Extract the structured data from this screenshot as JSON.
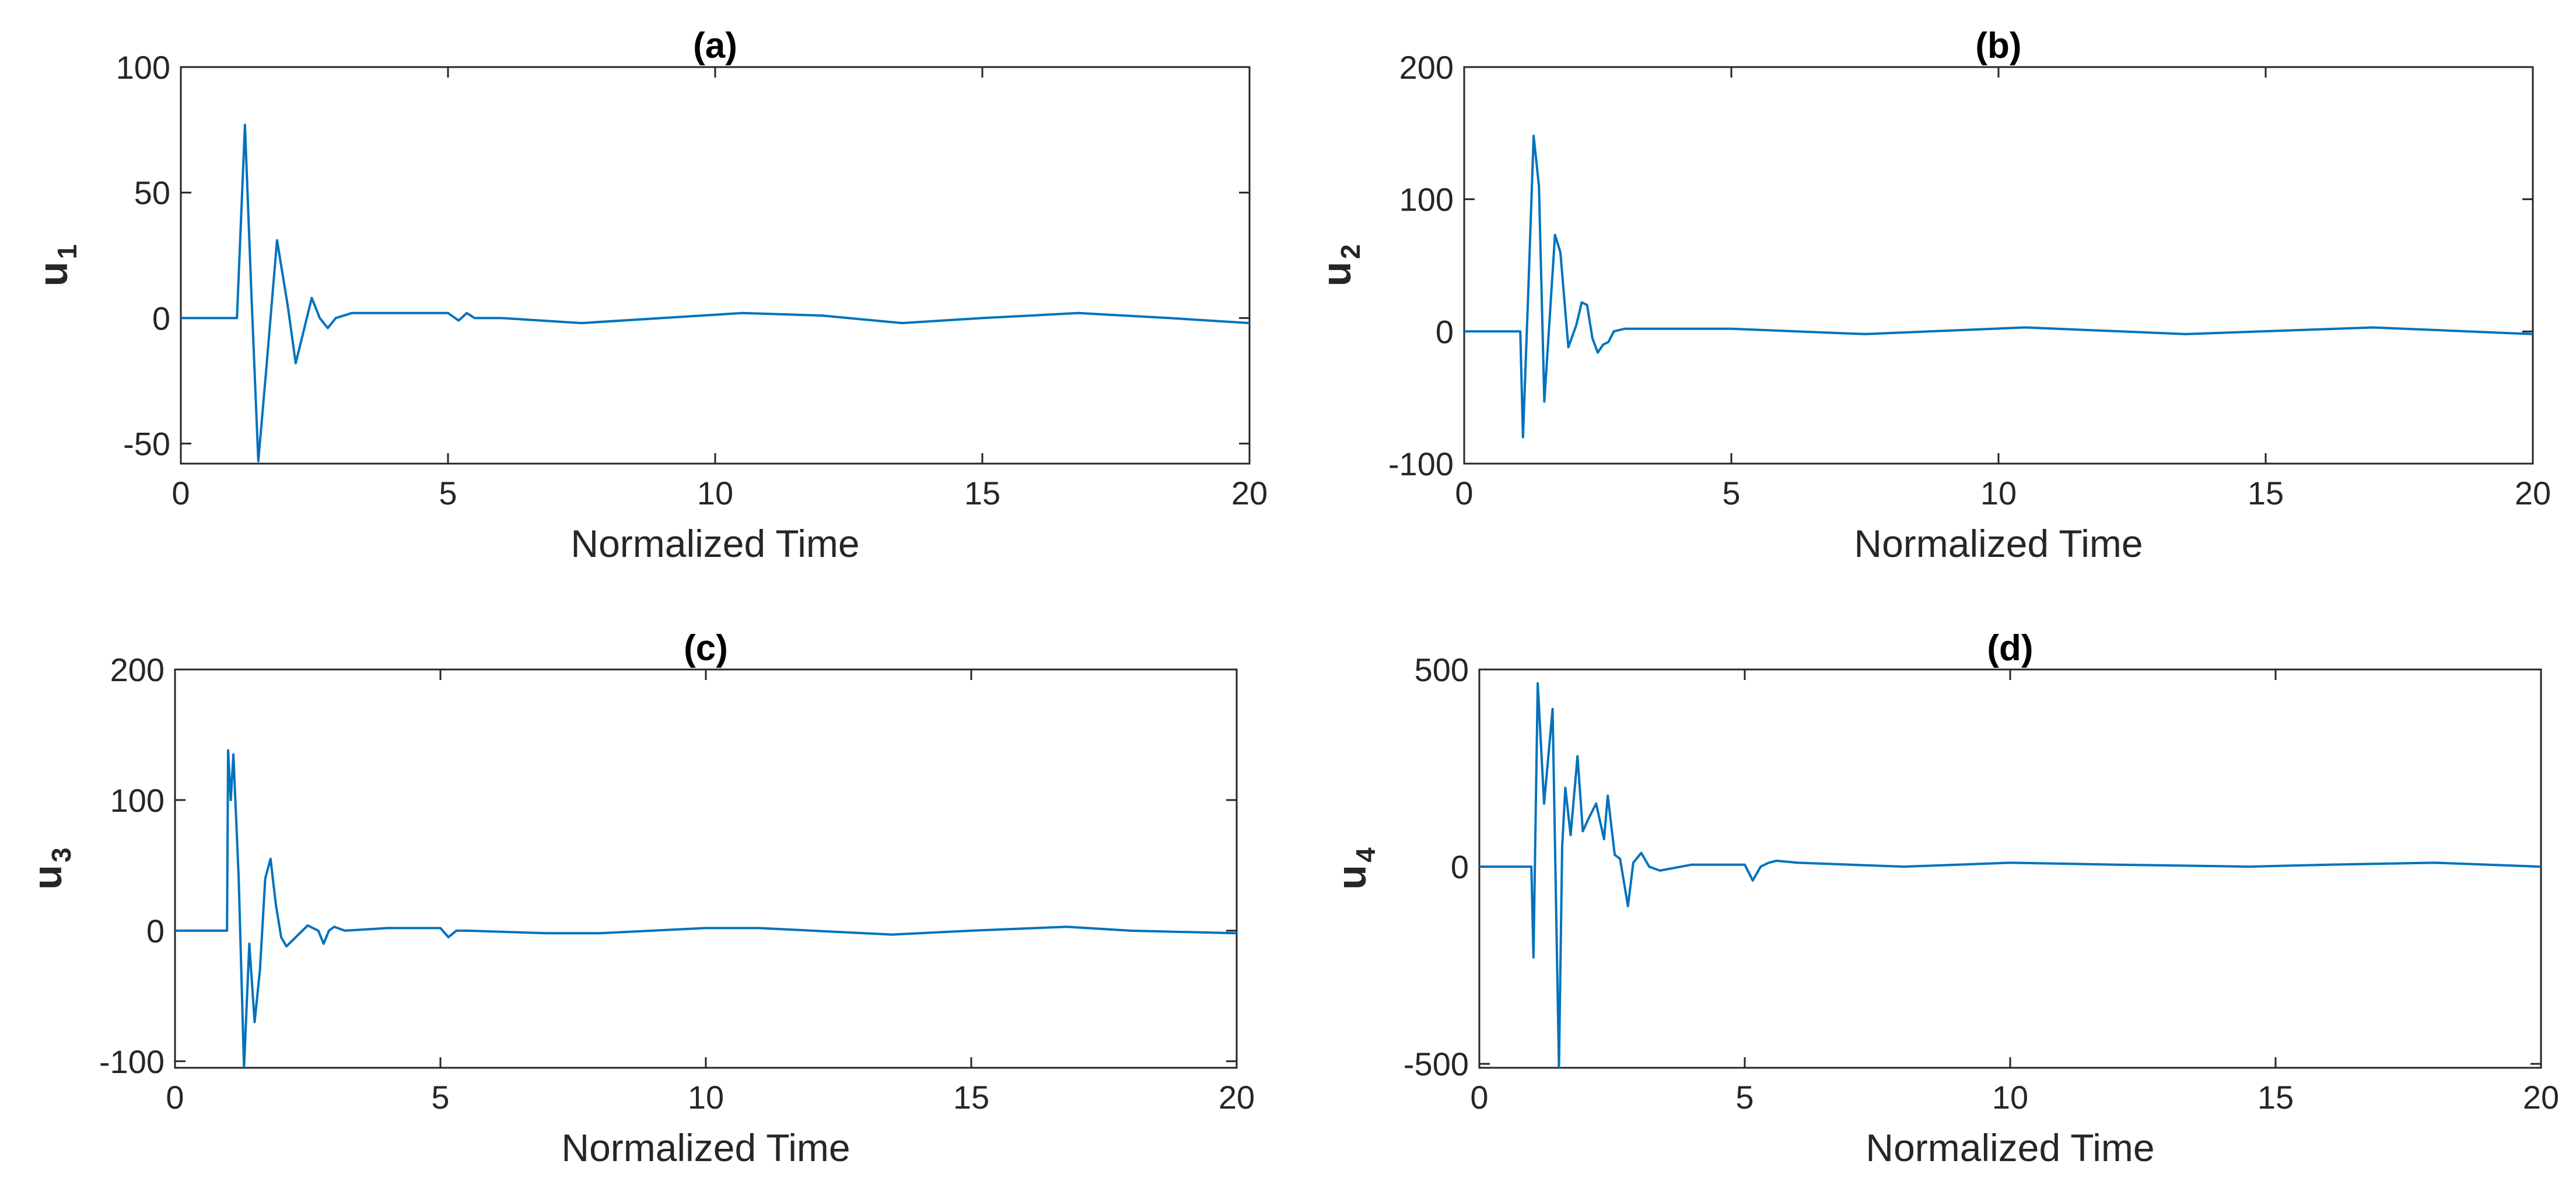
{
  "figure": {
    "line_color": "#0072BD",
    "axis_color": "#262626",
    "background": "#ffffff"
  },
  "chart_data": [
    {
      "type": "line",
      "title": "(a)",
      "xlabel": "Normalized Time",
      "ylabel_main": "u",
      "ylabel_sub": "1",
      "xlim": [
        0,
        20
      ],
      "ylim": [
        -58,
        100
      ],
      "xticks": [
        0,
        5,
        10,
        15,
        20
      ],
      "xtick_labels": [
        "0",
        "5",
        "10",
        "15",
        "20"
      ],
      "yticks": [
        -50,
        0,
        50,
        100
      ],
      "ytick_labels": [
        "-50",
        "0",
        "50",
        "100"
      ],
      "series": [
        {
          "name": "u1",
          "x": [
            0,
            1.0,
            1.05,
            1.2,
            1.32,
            1.45,
            1.6,
            1.8,
            2.0,
            2.15,
            2.3,
            2.45,
            2.6,
            2.75,
            2.9,
            3.2,
            4.0,
            5.0,
            5.2,
            5.35,
            5.5,
            6.0,
            7.5,
            9.0,
            10.5,
            12.0,
            13.5,
            15.0,
            16.8,
            18.5,
            20
          ],
          "values": [
            0,
            0,
            0,
            77,
            10,
            -57,
            -20,
            31,
            5,
            -18,
            -5,
            8,
            0,
            -4,
            0,
            2,
            2,
            2,
            -1,
            2,
            0,
            0,
            -2,
            0,
            2,
            1,
            -2,
            0,
            2,
            0,
            -2
          ]
        }
      ]
    },
    {
      "type": "line",
      "title": "(b)",
      "xlabel": "Normalized Time",
      "ylabel_main": "u",
      "ylabel_sub": "2",
      "xlim": [
        0,
        20
      ],
      "ylim": [
        -100,
        200
      ],
      "xticks": [
        0,
        5,
        10,
        15,
        20
      ],
      "xtick_labels": [
        "0",
        "5",
        "10",
        "15",
        "20"
      ],
      "yticks": [
        -100,
        0,
        100,
        200
      ],
      "ytick_labels": [
        "-100",
        "0",
        "100",
        "200"
      ],
      "series": [
        {
          "name": "u2",
          "x": [
            0,
            1.0,
            1.05,
            1.1,
            1.2,
            1.3,
            1.4,
            1.5,
            1.6,
            1.7,
            1.8,
            1.95,
            2.1,
            2.2,
            2.3,
            2.4,
            2.5,
            2.6,
            2.7,
            2.8,
            3.0,
            4.0,
            5.0,
            7.5,
            10.5,
            13.5,
            17.0,
            20
          ],
          "values": [
            0,
            0,
            0,
            -80,
            30,
            148,
            110,
            -53,
            10,
            73,
            60,
            -12,
            5,
            22,
            20,
            -5,
            -16,
            -10,
            -8,
            0,
            2,
            2,
            2,
            -2,
            3,
            -2,
            3,
            -2
          ]
        }
      ]
    },
    {
      "type": "line",
      "title": "(c)",
      "xlabel": "Normalized Time",
      "ylabel_main": "u",
      "ylabel_sub": "3",
      "xlim": [
        0,
        20
      ],
      "ylim": [
        -105,
        200
      ],
      "xticks": [
        0,
        5,
        10,
        15,
        20
      ],
      "xtick_labels": [
        "0",
        "5",
        "10",
        "15",
        "20"
      ],
      "yticks": [
        -100,
        0,
        100,
        200
      ],
      "ytick_labels": [
        "-100",
        "0",
        "100",
        "200"
      ],
      "series": [
        {
          "name": "u3",
          "x": [
            0,
            0.98,
            1.0,
            1.05,
            1.1,
            1.2,
            1.3,
            1.4,
            1.5,
            1.6,
            1.7,
            1.8,
            1.9,
            2.0,
            2.1,
            2.2,
            2.35,
            2.5,
            2.7,
            2.8,
            2.9,
            3.0,
            3.2,
            4.0,
            5.0,
            5.15,
            5.3,
            5.5,
            7.0,
            8.0,
            10.0,
            11.0,
            13.5,
            15.0,
            16.8,
            18.0,
            20
          ],
          "values": [
            0,
            0,
            138,
            100,
            135,
            40,
            -105,
            -10,
            -70,
            -30,
            40,
            55,
            20,
            -5,
            -12,
            -8,
            -2,
            4,
            0,
            -10,
            0,
            3,
            0,
            2,
            2,
            -5,
            0,
            0,
            -2,
            -2,
            2,
            2,
            -3,
            0,
            3,
            0,
            -2
          ]
        }
      ]
    },
    {
      "type": "line",
      "title": "(d)",
      "xlabel": "Normalized Time",
      "ylabel_main": "u",
      "ylabel_sub": "4",
      "xlim": [
        0,
        20
      ],
      "ylim": [
        -510,
        500
      ],
      "xticks": [
        0,
        5,
        10,
        15,
        20
      ],
      "xtick_labels": [
        "0",
        "5",
        "10",
        "15",
        "20"
      ],
      "yticks": [
        -500,
        0,
        500
      ],
      "ytick_labels": [
        "-500",
        "0",
        "500"
      ],
      "series": [
        {
          "name": "u4",
          "x": [
            0,
            0.98,
            1.02,
            1.1,
            1.22,
            1.38,
            1.5,
            1.56,
            1.62,
            1.72,
            1.85,
            1.95,
            2.05,
            2.2,
            2.35,
            2.42,
            2.55,
            2.65,
            2.8,
            2.9,
            3.05,
            3.2,
            3.4,
            4.0,
            5.0,
            5.15,
            5.3,
            5.45,
            5.6,
            6.0,
            8.0,
            10.0,
            12.0,
            14.5,
            16.0,
            18.0,
            20
          ],
          "values": [
            0,
            0,
            -230,
            465,
            160,
            400,
            -510,
            50,
            200,
            80,
            280,
            90,
            120,
            160,
            70,
            180,
            30,
            20,
            -100,
            10,
            35,
            0,
            -10,
            5,
            5,
            -35,
            0,
            10,
            15,
            10,
            0,
            10,
            5,
            0,
            5,
            10,
            0
          ]
        }
      ]
    }
  ]
}
